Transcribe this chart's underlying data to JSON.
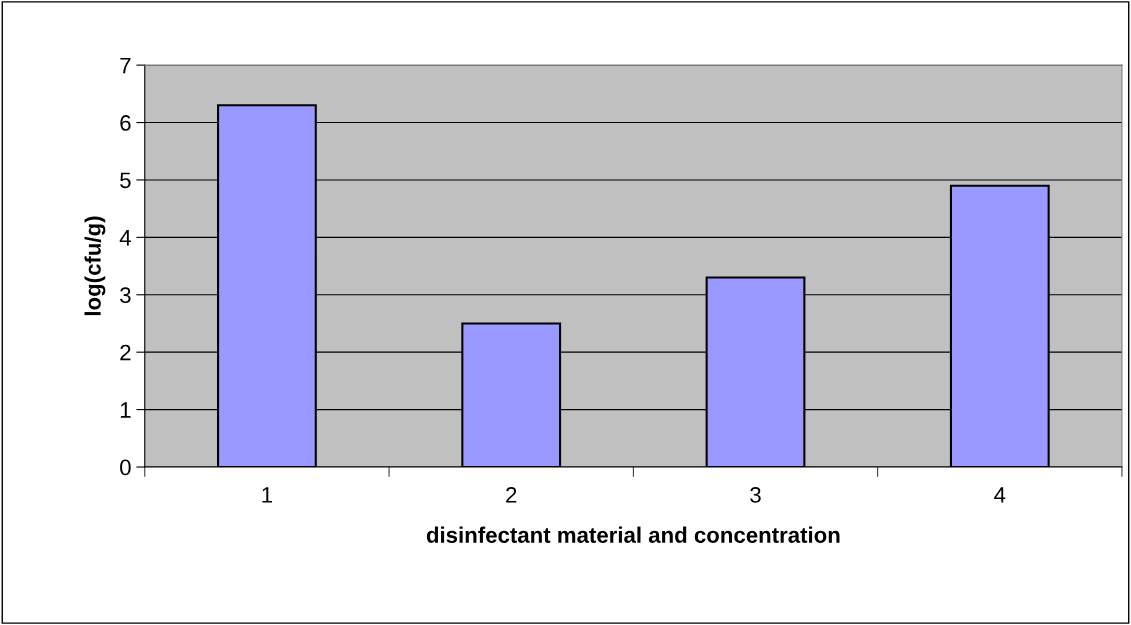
{
  "chart_data": {
    "type": "bar",
    "xlabel": "disinfectant material and concentration",
    "ylabel": "log(cfu/g)",
    "categories": [
      "1",
      "2",
      "3",
      "4"
    ],
    "values": [
      6.3,
      2.5,
      3.3,
      4.9
    ],
    "color": "#9999ff",
    "ylim": [
      0,
      7
    ],
    "yticks": [
      0,
      1,
      2,
      3,
      4,
      5,
      6,
      7
    ],
    "grid": "y",
    "legend": false
  }
}
